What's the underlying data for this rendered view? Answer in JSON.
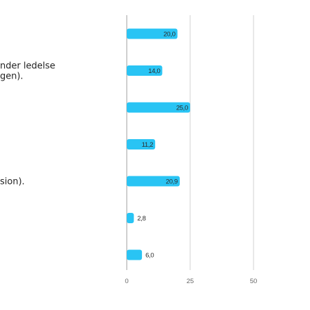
{
  "chart_data": {
    "type": "bar",
    "orientation": "horizontal",
    "categories": [
      "",
      "nder ledelse\ngen).",
      "",
      "",
      "sion).",
      "",
      ""
    ],
    "values": [
      20.0,
      14.0,
      25.0,
      11.2,
      20.9,
      2.8,
      6.0
    ],
    "value_labels": [
      "20,0",
      "14,0",
      "25,0",
      "11,2",
      "20,9",
      "2,8",
      "6,0"
    ],
    "xlim": [
      0,
      50
    ],
    "x_ticks": [
      0,
      25,
      50
    ],
    "x_tick_labels": [
      "0",
      "25",
      "50"
    ],
    "grid": true,
    "bar_color": "#29c4f4",
    "grid_color": "#d0d0d0",
    "axis_color": "#b5b5b5"
  }
}
